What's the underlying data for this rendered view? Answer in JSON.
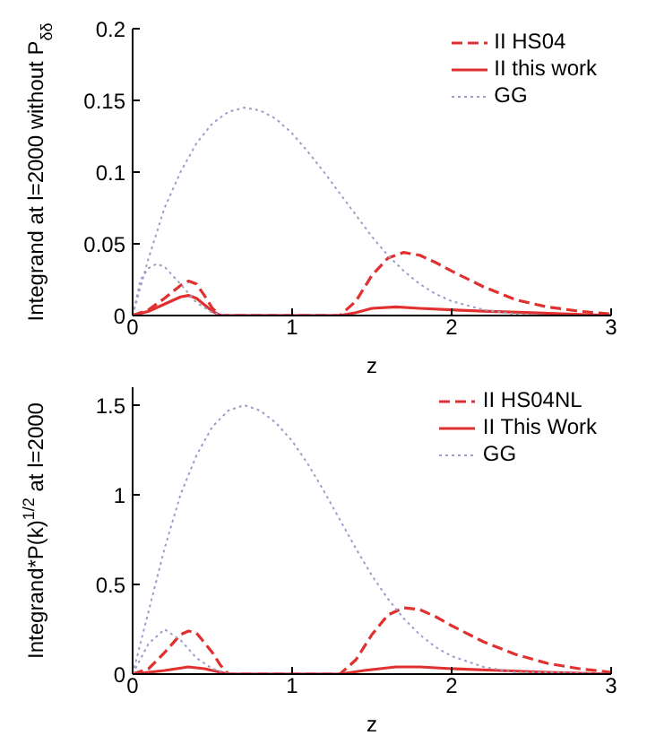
{
  "chart_data": [
    {
      "type": "line",
      "xlabel": "z",
      "ylabel": "Integrand at l=2000 without P$_{δδ}$",
      "xlim": [
        0,
        3
      ],
      "xticks": [
        0,
        1,
        2,
        3
      ],
      "ylim": [
        0,
        0.2
      ],
      "yticks": [
        0,
        0.05,
        0.1,
        0.15,
        0.2
      ],
      "legend": "top right",
      "series": [
        {
          "name": "II HS04",
          "color": "#e03030",
          "line_style": "dashed",
          "x": [
            0,
            0.1,
            0.2,
            0.3,
            0.35,
            0.4,
            0.45,
            0.5,
            0.55,
            1.3,
            1.4,
            1.5,
            1.6,
            1.7,
            1.8,
            1.9,
            2.0,
            2.2,
            2.4,
            2.6,
            2.8,
            3
          ],
          "values": [
            0,
            0.004,
            0.012,
            0.021,
            0.024,
            0.022,
            0.014,
            0.005,
            0,
            0,
            0.01,
            0.028,
            0.04,
            0.044,
            0.042,
            0.037,
            0.031,
            0.02,
            0.011,
            0.006,
            0.003,
            0.001
          ]
        },
        {
          "name": "II this work",
          "color": "#e03030",
          "line_style": "solid",
          "x": [
            0,
            0.1,
            0.2,
            0.3,
            0.35,
            0.4,
            0.5,
            0.55,
            1.3,
            1.4,
            1.5,
            1.65,
            1.8,
            2.0,
            2.2,
            2.5,
            3
          ],
          "values": [
            0,
            0.003,
            0.008,
            0.013,
            0.014,
            0.012,
            0.003,
            0,
            0,
            0.002,
            0.005,
            0.006,
            0.005,
            0.004,
            0.003,
            0.002,
            0
          ]
        },
        {
          "name": "GG",
          "color": "#9aa0c8",
          "line_style": "dotted",
          "x": [
            0,
            0.1,
            0.2,
            0.3,
            0.4,
            0.5,
            0.6,
            0.7,
            0.8,
            0.9,
            1.0,
            1.1,
            1.2,
            1.3,
            1.4,
            1.5,
            1.6,
            1.7,
            1.8,
            1.9,
            2.0,
            2.2,
            2.4,
            2.6,
            3
          ],
          "values": [
            0,
            0.04,
            0.075,
            0.1,
            0.12,
            0.134,
            0.142,
            0.145,
            0.143,
            0.137,
            0.127,
            0.114,
            0.1,
            0.085,
            0.07,
            0.055,
            0.042,
            0.031,
            0.022,
            0.015,
            0.01,
            0.004,
            0.001,
            0,
            0
          ]
        },
        {
          "color": "#9aa0c8",
          "line_style": "dotted",
          "x": [
            0,
            0.05,
            0.1,
            0.15,
            0.2,
            0.3,
            0.4,
            0.5,
            0.6
          ],
          "values": [
            0,
            0.025,
            0.033,
            0.036,
            0.034,
            0.022,
            0.009,
            0.002,
            0
          ]
        }
      ]
    },
    {
      "type": "line",
      "xlabel": "z",
      "ylabel": "Integrand*P(k)$^{1/2}$ at l=2000",
      "xlim": [
        0,
        3
      ],
      "xticks": [
        0,
        1,
        2,
        3
      ],
      "ylim": [
        0,
        1.6
      ],
      "yticks": [
        0,
        0.5,
        1,
        1.5
      ],
      "legend": "top right",
      "series": [
        {
          "name": "II HS04NL",
          "color": "#e03030",
          "line_style": "dashed",
          "x": [
            0,
            0.1,
            0.2,
            0.3,
            0.35,
            0.4,
            0.5,
            0.55,
            0.6,
            1.3,
            1.4,
            1.5,
            1.6,
            1.7,
            1.8,
            1.9,
            2.0,
            2.2,
            2.4,
            2.6,
            2.8,
            3
          ],
          "values": [
            0,
            0.03,
            0.12,
            0.22,
            0.24,
            0.23,
            0.12,
            0.05,
            0,
            0,
            0.08,
            0.22,
            0.33,
            0.37,
            0.36,
            0.32,
            0.27,
            0.18,
            0.11,
            0.06,
            0.03,
            0.01
          ]
        },
        {
          "name": "II This Work",
          "color": "#e03030",
          "line_style": "solid",
          "x": [
            0,
            0.2,
            0.35,
            0.45,
            0.55,
            0.6,
            1.3,
            1.45,
            1.65,
            1.8,
            2.0,
            2.3,
            2.6,
            3
          ],
          "values": [
            0,
            0.02,
            0.04,
            0.03,
            0.01,
            0,
            0,
            0.02,
            0.04,
            0.04,
            0.03,
            0.02,
            0.01,
            0
          ]
        },
        {
          "name": "GG",
          "color": "#9aa0c8",
          "line_style": "dotted",
          "x": [
            0,
            0.1,
            0.2,
            0.3,
            0.4,
            0.5,
            0.6,
            0.7,
            0.8,
            0.9,
            1.0,
            1.1,
            1.2,
            1.3,
            1.4,
            1.5,
            1.6,
            1.7,
            1.8,
            1.9,
            2.0,
            2.2,
            2.4,
            2.6,
            3
          ],
          "values": [
            0,
            0.35,
            0.7,
            1.0,
            1.22,
            1.38,
            1.47,
            1.5,
            1.47,
            1.4,
            1.3,
            1.17,
            1.02,
            0.86,
            0.7,
            0.55,
            0.42,
            0.31,
            0.22,
            0.15,
            0.1,
            0.04,
            0.01,
            0.01,
            0
          ]
        },
        {
          "color": "#9aa0c8",
          "line_style": "dotted",
          "x": [
            0,
            0.1,
            0.2,
            0.3,
            0.4,
            0.5,
            0.6
          ],
          "values": [
            0,
            0.17,
            0.25,
            0.19,
            0.09,
            0.03,
            0
          ]
        }
      ]
    }
  ]
}
